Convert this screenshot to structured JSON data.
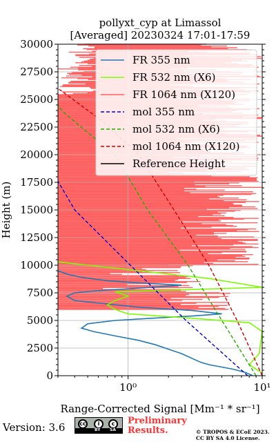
{
  "chart_data": {
    "type": "line",
    "title": "pollyxt_cyp at Limassol",
    "subtitle": "[Averaged] 20230324 17:01-17:59",
    "xlabel": "Range-Corrected Signal [Mm⁻¹ * sr⁻¹]",
    "ylabel": "Height (m)",
    "xscale": "log",
    "xlim": [
      0.3,
      10
    ],
    "ylim": [
      0,
      30000
    ],
    "xticks": [
      1,
      10
    ],
    "xtick_labels": [
      "10⁰",
      "10¹"
    ],
    "yticks": [
      0,
      2500,
      5000,
      7500,
      10000,
      12500,
      15000,
      17500,
      20000,
      22500,
      25000,
      27500,
      30000
    ],
    "ytick_labels": [
      "0",
      "2500",
      "5000",
      "7500",
      "10000",
      "12500",
      "15000",
      "17500",
      "20000",
      "22500",
      "25000",
      "27500",
      "30000"
    ],
    "grid": true,
    "legend_position": "top-right",
    "series": [
      {
        "name": "FR 355 nm",
        "color": "#1f77b4",
        "style": "solid",
        "x": [
          8.5,
          7.5,
          6.0,
          4.0,
          3.5,
          2.5,
          1.6,
          1.2,
          0.8,
          0.55,
          0.45,
          0.5,
          0.8,
          1.5,
          3.0,
          5.0,
          3.0,
          1.2,
          0.7,
          0.4,
          0.35,
          0.4,
          0.6,
          1.5,
          2.5,
          1.2,
          0.7,
          0.45,
          0.35,
          0.3
        ],
        "y": [
          0,
          300,
          600,
          1000,
          1200,
          2000,
          2800,
          3200,
          3600,
          4000,
          4300,
          4700,
          5000,
          5200,
          5400,
          5600,
          5900,
          6200,
          6500,
          6800,
          7200,
          7500,
          7700,
          8000,
          8200,
          8400,
          8600,
          8900,
          9200,
          9500
        ]
      },
      {
        "name": "FR 532 nm (X6)",
        "color": "#7cfc00",
        "style": "solid",
        "x": [
          10.0,
          9.8,
          9.0,
          8.0,
          9.5,
          10.0,
          8.0,
          3.0,
          1.0,
          0.8,
          0.7,
          0.8,
          1.0,
          0.8,
          3.0,
          10.0,
          4.0,
          1.0,
          0.5,
          0.3
        ],
        "y": [
          0,
          300,
          600,
          1000,
          2000,
          4000,
          4800,
          5200,
          5600,
          6000,
          6400,
          6800,
          7200,
          7600,
          7800,
          8000,
          8800,
          9600,
          10000,
          10300
        ]
      },
      {
        "name": "FR 1064 nm (X120)",
        "color": "#ff6161",
        "style": "solid",
        "x": [],
        "y": []
      },
      {
        "name": "mol 355 nm",
        "color": "#0000cc",
        "style": "dashed",
        "x": [
          7.8,
          2.7,
          1.04,
          0.4,
          0.3
        ],
        "y": [
          0,
          5000,
          10000,
          15000,
          17600
        ]
      },
      {
        "name": "mol 532 nm (X6)",
        "color": "#22aa00",
        "style": "dashed",
        "x": [
          9.0,
          5.0,
          2.8,
          1.4,
          0.8,
          0.5,
          0.32,
          0.3
        ],
        "y": [
          0,
          5000,
          10000,
          15000,
          20000,
          22000,
          24000,
          24500
        ]
      },
      {
        "name": "mol 1064 nm (X120)",
        "color": "#cc0000",
        "style": "dashed",
        "x": [
          10.0,
          6.5,
          4.0,
          2.2,
          1.2,
          0.65,
          0.3
        ],
        "y": [
          0,
          5000,
          10000,
          15000,
          20000,
          23000,
          26000
        ]
      },
      {
        "name": "Reference Height",
        "color": "#000000",
        "style": "solid",
        "x": [],
        "y": []
      }
    ]
  },
  "footer": {
    "version": "Version: 3.6",
    "cc_marks": [
      "cc",
      "BY",
      "SA"
    ],
    "preliminary": [
      "Preliminary",
      "Results."
    ],
    "copyright": [
      "© TROPOS & ECoE 2023.",
      "CC BY SA 4.0 License."
    ]
  }
}
